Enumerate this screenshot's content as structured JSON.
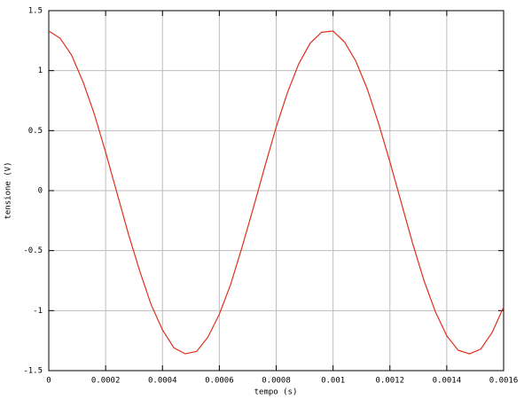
{
  "chart_data": {
    "type": "line",
    "xlabel": "tempo (s)",
    "ylabel": "tensione (V)",
    "x": [
      0,
      4e-05,
      8e-05,
      0.00012,
      0.00016,
      0.0002,
      0.00024,
      0.00028,
      0.00032,
      0.00036,
      0.0004,
      0.00044,
      0.00048,
      0.00052,
      0.00056,
      0.0006,
      0.00064,
      0.00068,
      0.00072,
      0.00076,
      0.0008,
      0.00084,
      0.00088,
      0.00092,
      0.00096,
      0.001,
      0.00104,
      0.00108,
      0.00112,
      0.00116,
      0.0012,
      0.00124,
      0.00128,
      0.00132,
      0.00136,
      0.0014,
      0.00144,
      0.00148,
      0.00152,
      0.00156,
      0.0016
    ],
    "series": [
      {
        "color": "#e0301c",
        "values": [
          1.33,
          1.27,
          1.13,
          0.91,
          0.64,
          0.32,
          -0.02,
          -0.36,
          -0.67,
          -0.95,
          -1.16,
          -1.31,
          -1.36,
          -1.34,
          -1.22,
          -1.03,
          -0.78,
          -0.47,
          -0.14,
          0.2,
          0.53,
          0.82,
          1.06,
          1.23,
          1.32,
          1.33,
          1.24,
          1.08,
          0.85,
          0.56,
          0.24,
          -0.1,
          -0.44,
          -0.75,
          -1.01,
          -1.21,
          -1.33,
          -1.36,
          -1.32,
          -1.18,
          -0.97
        ]
      }
    ],
    "xlim": [
      0,
      0.0016
    ],
    "xticks": [
      0,
      0.0002,
      0.0004,
      0.0006,
      0.0008,
      0.001,
      0.0012,
      0.0014,
      0.0016
    ],
    "ylim": [
      -1.5,
      1.5
    ],
    "yticks": [
      -1.5,
      -1,
      -0.5,
      0,
      0.5,
      1,
      1.5
    ],
    "grid": true
  }
}
